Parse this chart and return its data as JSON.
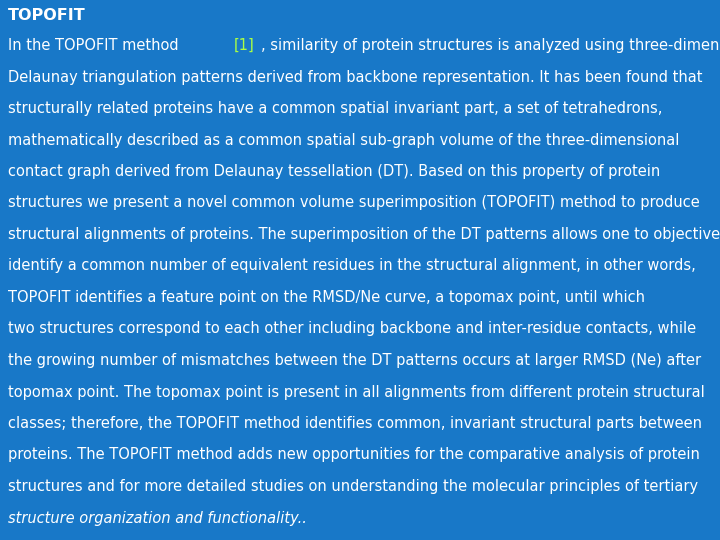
{
  "background_color": "#1878c8",
  "title": "TOPOFIT",
  "title_color": "#ffffff",
  "title_fontsize": 11.5,
  "body_color": "#ffffff",
  "body_fontsize": 10.5,
  "link_color": "#aaff44",
  "text_lines": [
    {
      "text": "In the TOPOFIT method [1], similarity of protein structures is analyzed using three-dimensional",
      "has_link": true,
      "link_text": "[1]"
    },
    {
      "text": "Delaunay triangulation patterns derived from backbone representation. It has been found that"
    },
    {
      "text": "structurally related proteins have a common spatial invariant part, a set of tetrahedrons,"
    },
    {
      "text": "mathematically described as a common spatial sub-graph volume of the three-dimensional"
    },
    {
      "text": "contact graph derived from Delaunay tessellation (DT). Based on this property of protein"
    },
    {
      "text": "structures we present a novel common volume superimposition (TOPOFIT) method to produce"
    },
    {
      "text": "structural alignments of proteins. The superimposition of the DT patterns allows one to objectively"
    },
    {
      "text": "identify a common number of equivalent residues in the structural alignment, in other words,"
    },
    {
      "text": "TOPOFIT identifies a feature point on the RMSD/Ne curve, a topomax point, until which"
    },
    {
      "text": "two structures correspond to each other including backbone and inter-residue contacts, while"
    },
    {
      "text": "the growing number of mismatches between the DT patterns occurs at larger RMSD (Ne) after"
    },
    {
      "text": "topomax point. The topomax point is present in all alignments from different protein structural"
    },
    {
      "text": "classes; therefore, the TOPOFIT method identifies common, invariant structural parts between"
    },
    {
      "text": "proteins. The TOPOFIT method adds new opportunities for the comparative analysis of protein"
    },
    {
      "text": "structures and for more detailed studies on understanding the molecular principles of tertiary"
    },
    {
      "text": "structure organization and functionality..",
      "italic": true
    }
  ],
  "figwidth": 7.2,
  "figheight": 5.4,
  "dpi": 100
}
